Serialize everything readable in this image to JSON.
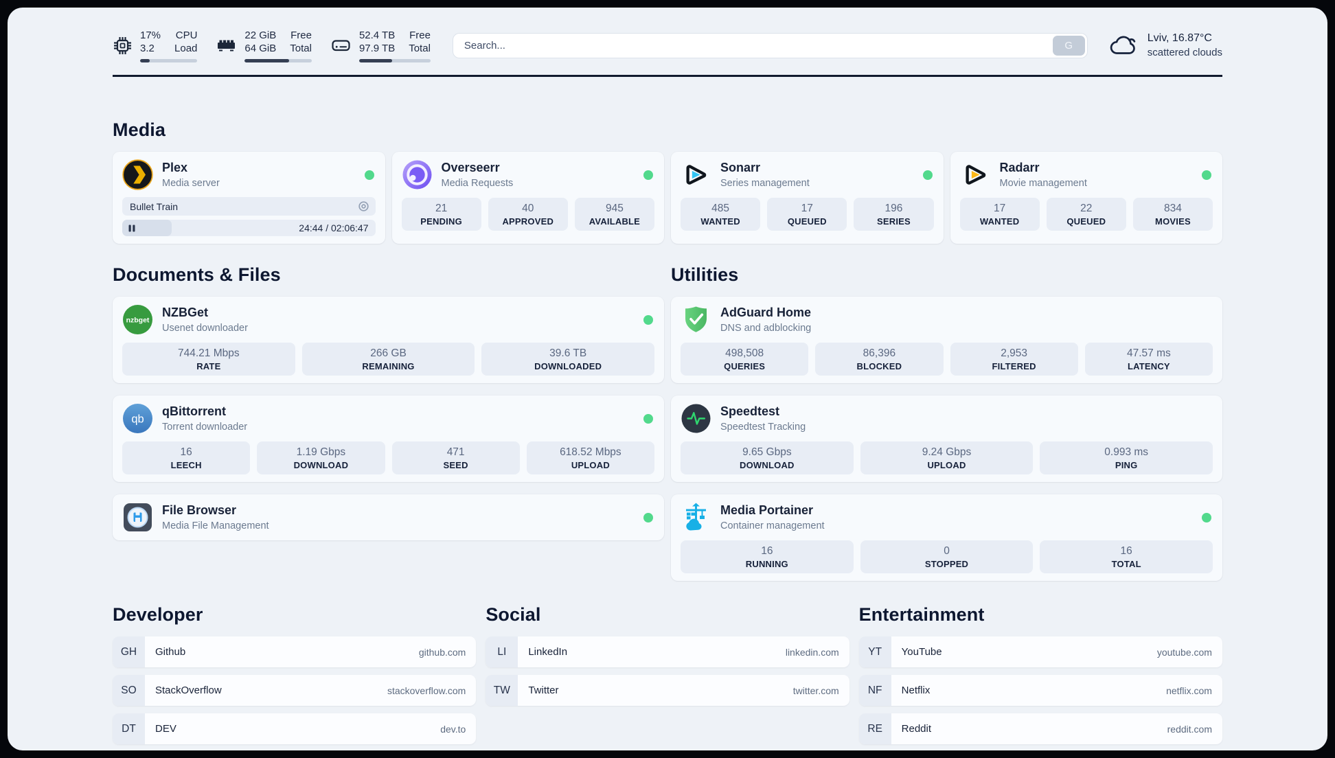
{
  "colors": {
    "status_online": "#52d98c",
    "bar_fill": "#353f53",
    "plex_orange": "#ebaf00",
    "sonarr_cyan": "#33c5f3",
    "radarr_yellow": "#fdb818",
    "portainer_blue": "#18b0e6"
  },
  "topbar": {
    "cpu": {
      "value_top": "17%",
      "value_bottom": "3.2",
      "label_top": "CPU",
      "label_bottom": "Load",
      "bar_percent": 17
    },
    "memory": {
      "value_top": "22 GiB",
      "value_bottom": "64 GiB",
      "label_top": "Free",
      "label_bottom": "Total",
      "bar_percent": 66
    },
    "disk": {
      "value_top": "52.4 TB",
      "value_bottom": "97.9 TB",
      "label_top": "Free",
      "label_bottom": "Total",
      "bar_percent": 46
    },
    "search": {
      "placeholder": "Search...",
      "button_label": "G"
    },
    "weather": {
      "location": "Lviv, 16.87°C",
      "condition": "scattered clouds",
      "icon": "cloud-icon"
    }
  },
  "media": {
    "title": "Media",
    "plex": {
      "title": "Plex",
      "subtitle": "Media server",
      "icon": "plex-icon",
      "online": true,
      "player": {
        "track": "Bullet Train",
        "time_display": "24:44 / 02:06:47",
        "progress_percent": 19.5
      }
    },
    "overseerr": {
      "title": "Overseerr",
      "subtitle": "Media Requests",
      "icon": "overseerr-icon",
      "online": true,
      "stats": [
        {
          "value": "21",
          "label": "PENDING"
        },
        {
          "value": "40",
          "label": "APPROVED"
        },
        {
          "value": "945",
          "label": "AVAILABLE"
        }
      ]
    },
    "sonarr": {
      "title": "Sonarr",
      "subtitle": "Series management",
      "icon": "sonarr-icon",
      "online": true,
      "stats": [
        {
          "value": "485",
          "label": "WANTED"
        },
        {
          "value": "17",
          "label": "QUEUED"
        },
        {
          "value": "196",
          "label": "SERIES"
        }
      ]
    },
    "radarr": {
      "title": "Radarr",
      "subtitle": "Movie management",
      "icon": "radarr-icon",
      "online": true,
      "stats": [
        {
          "value": "17",
          "label": "WANTED"
        },
        {
          "value": "22",
          "label": "QUEUED"
        },
        {
          "value": "834",
          "label": "MOVIES"
        }
      ]
    }
  },
  "documents": {
    "title": "Documents & Files",
    "nzbget": {
      "title": "NZBGet",
      "subtitle": "Usenet downloader",
      "icon": "nzbget-icon",
      "icon_text": "nzbget",
      "online": true,
      "stats": [
        {
          "value": "744.21 Mbps",
          "label": "RATE"
        },
        {
          "value": "266 GB",
          "label": "REMAINING"
        },
        {
          "value": "39.6 TB",
          "label": "DOWNLOADED"
        }
      ]
    },
    "qbittorrent": {
      "title": "qBittorrent",
      "subtitle": "Torrent downloader",
      "icon": "qbittorrent-icon",
      "icon_text": "qb",
      "online": true,
      "stats": [
        {
          "value": "16",
          "label": "LEECH"
        },
        {
          "value": "1.19 Gbps",
          "label": "DOWNLOAD"
        },
        {
          "value": "471",
          "label": "SEED"
        },
        {
          "value": "618.52 Mbps",
          "label": "UPLOAD"
        }
      ]
    },
    "filebrowser": {
      "title": "File Browser",
      "subtitle": "Media File Management",
      "icon": "filebrowser-icon",
      "online": true
    }
  },
  "utilities": {
    "title": "Utilities",
    "adguard": {
      "title": "AdGuard Home",
      "subtitle": "DNS and adblocking",
      "icon": "adguard-icon",
      "show_status_dot": false,
      "stats": [
        {
          "value": "498,508",
          "label": "QUERIES"
        },
        {
          "value": "86,396",
          "label": "BLOCKED"
        },
        {
          "value": "2,953",
          "label": "FILTERED"
        },
        {
          "value": "47.57 ms",
          "label": "LATENCY"
        }
      ]
    },
    "speedtest": {
      "title": "Speedtest",
      "subtitle": "Speedtest Tracking",
      "icon": "speedtest-icon",
      "show_status_dot": false,
      "stats": [
        {
          "value": "9.65 Gbps",
          "label": "DOWNLOAD"
        },
        {
          "value": "9.24 Gbps",
          "label": "UPLOAD"
        },
        {
          "value": "0.993 ms",
          "label": "PING"
        }
      ]
    },
    "portainer": {
      "title": "Media Portainer",
      "subtitle": "Container management",
      "icon": "portainer-icon",
      "online": true,
      "stats": [
        {
          "value": "16",
          "label": "RUNNING"
        },
        {
          "value": "0",
          "label": "STOPPED"
        },
        {
          "value": "16",
          "label": "TOTAL"
        }
      ]
    }
  },
  "bookmarks": {
    "developer": {
      "title": "Developer",
      "items": [
        {
          "abbr": "GH",
          "name": "Github",
          "url": "github.com"
        },
        {
          "abbr": "SO",
          "name": "StackOverflow",
          "url": "stackoverflow.com"
        },
        {
          "abbr": "DT",
          "name": "DEV",
          "url": "dev.to"
        }
      ]
    },
    "social": {
      "title": "Social",
      "items": [
        {
          "abbr": "LI",
          "name": "LinkedIn",
          "url": "linkedin.com"
        },
        {
          "abbr": "TW",
          "name": "Twitter",
          "url": "twitter.com"
        }
      ]
    },
    "entertainment": {
      "title": "Entertainment",
      "items": [
        {
          "abbr": "YT",
          "name": "YouTube",
          "url": "youtube.com"
        },
        {
          "abbr": "NF",
          "name": "Netflix",
          "url": "netflix.com"
        },
        {
          "abbr": "RE",
          "name": "Reddit",
          "url": "reddit.com"
        }
      ]
    }
  }
}
